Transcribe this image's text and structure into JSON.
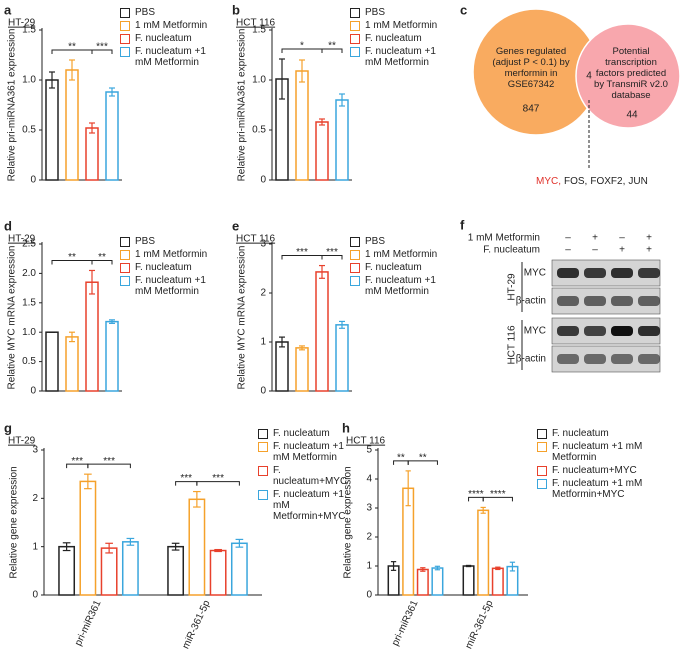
{
  "chart_data": [
    {
      "type": "bar",
      "panel": "a",
      "subtitle": "HT-29",
      "ylabel": "Relative pri-miRNA361 expression",
      "categories": [
        "PBS",
        "1 mM Metformin",
        "F. nucleatum",
        "F. nucleatum +1 mM Metformin"
      ],
      "colors": [
        "#222222",
        "#f5a12b",
        "#e8412c",
        "#3aa6dd"
      ],
      "values": [
        1.0,
        1.1,
        0.52,
        0.88
      ],
      "errors": [
        0.08,
        0.1,
        0.05,
        0.04
      ],
      "ylim": [
        0,
        1.5
      ],
      "yticks": [
        0,
        0.5,
        {
          "value": 1,
          "label": "1.0"
        },
        1.5
      ],
      "comparisons": [
        {
          "label": "**",
          "between": [
            0,
            2
          ]
        },
        {
          "label": "***",
          "between": [
            2,
            3
          ]
        }
      ]
    },
    {
      "type": "bar",
      "panel": "b",
      "subtitle": "HCT 116",
      "ylabel": "Relative pri-miRNA361 expression",
      "categories": [
        "PBS",
        "1 mM Metformin",
        "F. nucleatum",
        "F. nucleatum +1 mM Metformin"
      ],
      "colors": [
        "#222222",
        "#f5a12b",
        "#e8412c",
        "#3aa6dd"
      ],
      "values": [
        1.01,
        1.09,
        0.58,
        0.8
      ],
      "errors": [
        0.2,
        0.11,
        0.03,
        0.06
      ],
      "ylim": [
        0,
        1.5
      ],
      "yticks": [
        0,
        0.5,
        {
          "value": 1,
          "label": "1.0"
        },
        1.5
      ],
      "comparisons": [
        {
          "label": "*",
          "between": [
            0,
            2
          ]
        },
        {
          "label": "**",
          "between": [
            2,
            3
          ]
        }
      ]
    },
    {
      "type": "venn",
      "panel": "c",
      "sets": [
        {
          "label": "Genes regulated (adjust P < 0.1) by merformin in GSE67342",
          "count": 847,
          "color": "#f9ab60"
        },
        {
          "label": "Potential transcription factors predicted by TransmiR v2.0 database",
          "count": 44,
          "color": "#f8a7ad"
        }
      ],
      "overlap": 4,
      "overlap_genes": [
        {
          "name": "MYC,",
          "color": "#e0312a"
        },
        {
          "name": "FOS,",
          "color": "#222222"
        },
        {
          "name": "FOXF2,",
          "color": "#222222"
        },
        {
          "name": "JUN",
          "color": "#222222"
        }
      ]
    },
    {
      "type": "bar",
      "panel": "d",
      "subtitle": "HT-29",
      "ylabel": "Relative MYC mRNA expression",
      "categories": [
        "PBS",
        "1 mM Metformin",
        "F. nucleatum",
        "F. nucleatum +1 mM Metformin"
      ],
      "colors": [
        "#222222",
        "#f5a12b",
        "#e8412c",
        "#3aa6dd"
      ],
      "values": [
        1.0,
        0.92,
        1.85,
        1.18
      ],
      "errors": [
        0.0,
        0.08,
        0.2,
        0.03
      ],
      "ylim": [
        0,
        2.5
      ],
      "yticks": [
        0,
        0.5,
        {
          "value": 1,
          "label": "1.0"
        },
        1.5,
        {
          "value": 2,
          "label": "2.0"
        },
        2.5
      ],
      "comparisons": [
        {
          "label": "**",
          "between": [
            0,
            2
          ]
        },
        {
          "label": "**",
          "between": [
            2,
            3
          ]
        }
      ]
    },
    {
      "type": "bar",
      "panel": "e",
      "subtitle": "HCT 116",
      "ylabel": "Relative MYC mRNA expression",
      "categories": [
        "PBS",
        "1 mM Metformin",
        "F. nucleatum",
        "F. nucleatum +1 mM Metformin"
      ],
      "colors": [
        "#222222",
        "#f5a12b",
        "#e8412c",
        "#3aa6dd"
      ],
      "values": [
        1.0,
        0.88,
        2.43,
        1.35
      ],
      "errors": [
        0.1,
        0.04,
        0.13,
        0.07
      ],
      "ylim": [
        0,
        3
      ],
      "yticks": [
        0,
        1,
        2,
        3
      ],
      "comparisons": [
        {
          "label": "***",
          "between": [
            0,
            2
          ]
        },
        {
          "label": "***",
          "between": [
            2,
            3
          ]
        }
      ]
    },
    {
      "type": "blot",
      "panel": "f",
      "conditions": [
        {
          "label": "1 mM Metformin",
          "signs": [
            "–",
            "+",
            "–",
            "+"
          ]
        },
        {
          "label": "F. nucleatum",
          "signs": [
            "–",
            "–",
            "+",
            "+"
          ]
        }
      ],
      "cell_lines": [
        {
          "label": "HT-29",
          "rows": [
            "MYC",
            "β-actin"
          ]
        },
        {
          "label": "HCT 116",
          "rows": [
            "MYC",
            "β-actin"
          ]
        }
      ]
    },
    {
      "type": "bar",
      "panel": "g",
      "subtitle": "HT-29",
      "ylabel": "Relative gene expression",
      "categories": [
        "pri-miR361",
        "miR-361-5p"
      ],
      "series": [
        {
          "name": "F. nucleatum",
          "color": "#222222",
          "values": [
            1.0,
            1.0
          ],
          "errors": [
            0.08,
            0.07
          ]
        },
        {
          "name": "F. nucleatum +1 mM Metformin",
          "color": "#f5a12b",
          "values": [
            2.35,
            1.98
          ],
          "errors": [
            0.15,
            0.16
          ]
        },
        {
          "name": "F. nucleatum+MYC",
          "color": "#e8412c",
          "values": [
            0.97,
            0.92
          ],
          "errors": [
            0.1,
            0.02
          ]
        },
        {
          "name": "F. nucleatum +1 mM Metformin+MYC",
          "color": "#3aa6dd",
          "values": [
            1.1,
            1.07
          ],
          "errors": [
            0.07,
            0.08
          ]
        }
      ],
      "ylim": [
        0,
        3
      ],
      "yticks": [
        0,
        1,
        2,
        3
      ],
      "comparisons": [
        {
          "label": "***",
          "category": 0,
          "between": [
            0,
            1
          ]
        },
        {
          "label": "***",
          "category": 0,
          "between": [
            1,
            3
          ]
        },
        {
          "label": "***",
          "category": 1,
          "between": [
            0,
            1
          ]
        },
        {
          "label": "***",
          "category": 1,
          "between": [
            1,
            3
          ]
        }
      ]
    },
    {
      "type": "bar",
      "panel": "h",
      "subtitle": "HCT 116",
      "ylabel": "Relative gene expression",
      "categories": [
        "pri-miR361",
        "miR-361-5p"
      ],
      "series": [
        {
          "name": "F. nucleatum",
          "color": "#222222",
          "values": [
            1.0,
            1.0
          ],
          "errors": [
            0.15,
            0.02
          ]
        },
        {
          "name": "F. nucleatum +1 mM Metformin",
          "color": "#f5a12b",
          "values": [
            3.68,
            2.92
          ],
          "errors": [
            0.6,
            0.1
          ]
        },
        {
          "name": "F. nucleatum+MYC",
          "color": "#e8412c",
          "values": [
            0.88,
            0.92
          ],
          "errors": [
            0.06,
            0.04
          ]
        },
        {
          "name": "F. nucleatum +1 mM Metformin+MYC",
          "color": "#3aa6dd",
          "values": [
            0.93,
            0.98
          ],
          "errors": [
            0.06,
            0.15
          ]
        }
      ],
      "ylim": [
        0,
        5
      ],
      "yticks": [
        0,
        1,
        2,
        3,
        4,
        5
      ],
      "comparisons": [
        {
          "label": "**",
          "category": 0,
          "between": [
            0,
            1
          ]
        },
        {
          "label": "**",
          "category": 0,
          "between": [
            1,
            3
          ]
        },
        {
          "label": "****",
          "category": 1,
          "between": [
            0,
            1
          ]
        },
        {
          "label": "****",
          "category": 1,
          "between": [
            1,
            3
          ]
        }
      ]
    }
  ]
}
